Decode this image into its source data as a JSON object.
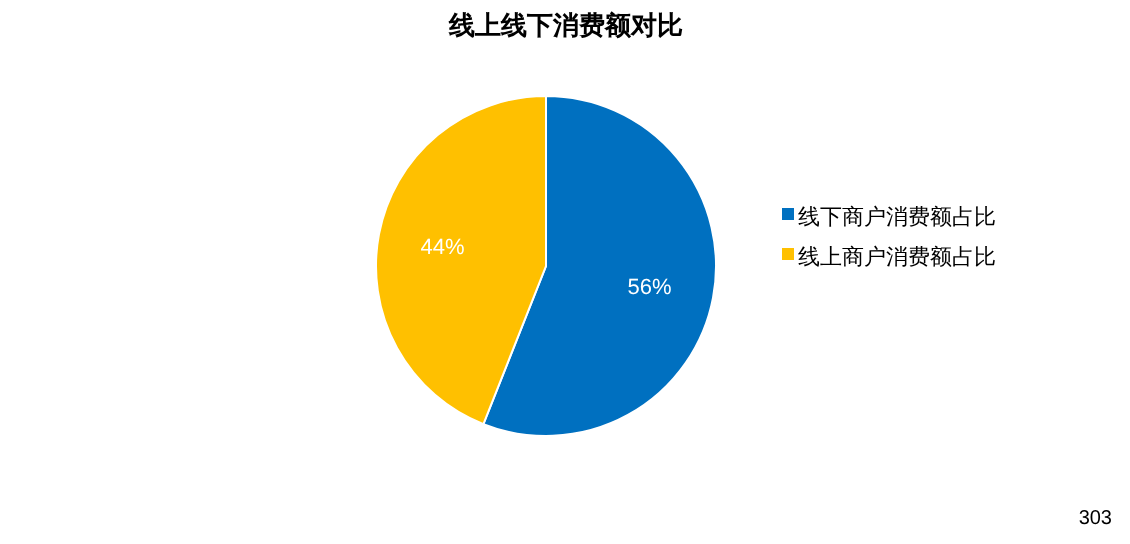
{
  "chart_data": {
    "type": "pie",
    "title": "线上线下消费额对比",
    "categories": [
      "线下商户消费额占比",
      "线上商户消费额占比"
    ],
    "values": [
      56,
      44
    ],
    "colors": [
      "#0070c0",
      "#ffc000"
    ],
    "value_labels": [
      "56%",
      "44%"
    ],
    "legend": "right",
    "annotations": [
      "303"
    ]
  }
}
